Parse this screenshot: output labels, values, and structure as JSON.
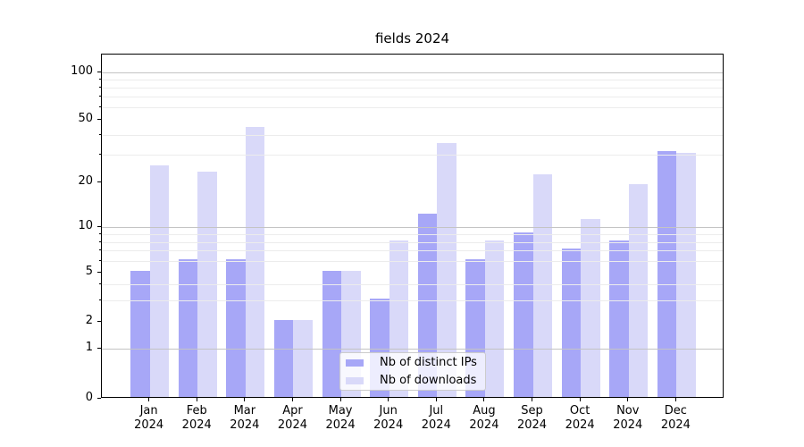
{
  "chart_data": {
    "type": "bar",
    "title": "fields 2024",
    "months": [
      "Jan",
      "Feb",
      "Mar",
      "Apr",
      "May",
      "Jun",
      "Jul",
      "Aug",
      "Sep",
      "Oct",
      "Nov",
      "Dec"
    ],
    "year": "2024",
    "categories": [
      "Jan 2024",
      "Feb 2024",
      "Mar 2024",
      "Apr 2024",
      "May 2024",
      "Jun 2024",
      "Jul 2024",
      "Aug 2024",
      "Sep 2024",
      "Oct 2024",
      "Nov 2024",
      "Dec 2024"
    ],
    "series": [
      {
        "name": "Nb of distinct IPs",
        "color": "#a7a7f7",
        "values": [
          5,
          6,
          6,
          2,
          5,
          3,
          12,
          6,
          9,
          7,
          8,
          31
        ]
      },
      {
        "name": "Nb of downloads",
        "color": "#d9d9f9",
        "values": [
          25,
          23,
          44,
          2,
          5,
          8,
          35,
          8,
          22,
          11,
          19,
          30
        ]
      }
    ],
    "y_axis": {
      "scale": "symlog",
      "labeled_ticks": [
        100,
        50,
        20,
        10,
        5,
        2,
        1,
        0
      ],
      "major_gridlines": [
        1,
        10,
        100
      ],
      "minor_gridlines": [
        3,
        4,
        6,
        7,
        8,
        9,
        30,
        40,
        60,
        70,
        80,
        90
      ],
      "ylim": [
        0,
        130
      ]
    },
    "legend": {
      "position": "lower-center",
      "entries": [
        "Nb of distinct IPs",
        "Nb of downloads"
      ]
    },
    "grid": "on",
    "background_color": "#ffffff",
    "axis_color": "#000000",
    "major_grid_color": "#c4c4c4",
    "minor_grid_color": "#ececec"
  }
}
